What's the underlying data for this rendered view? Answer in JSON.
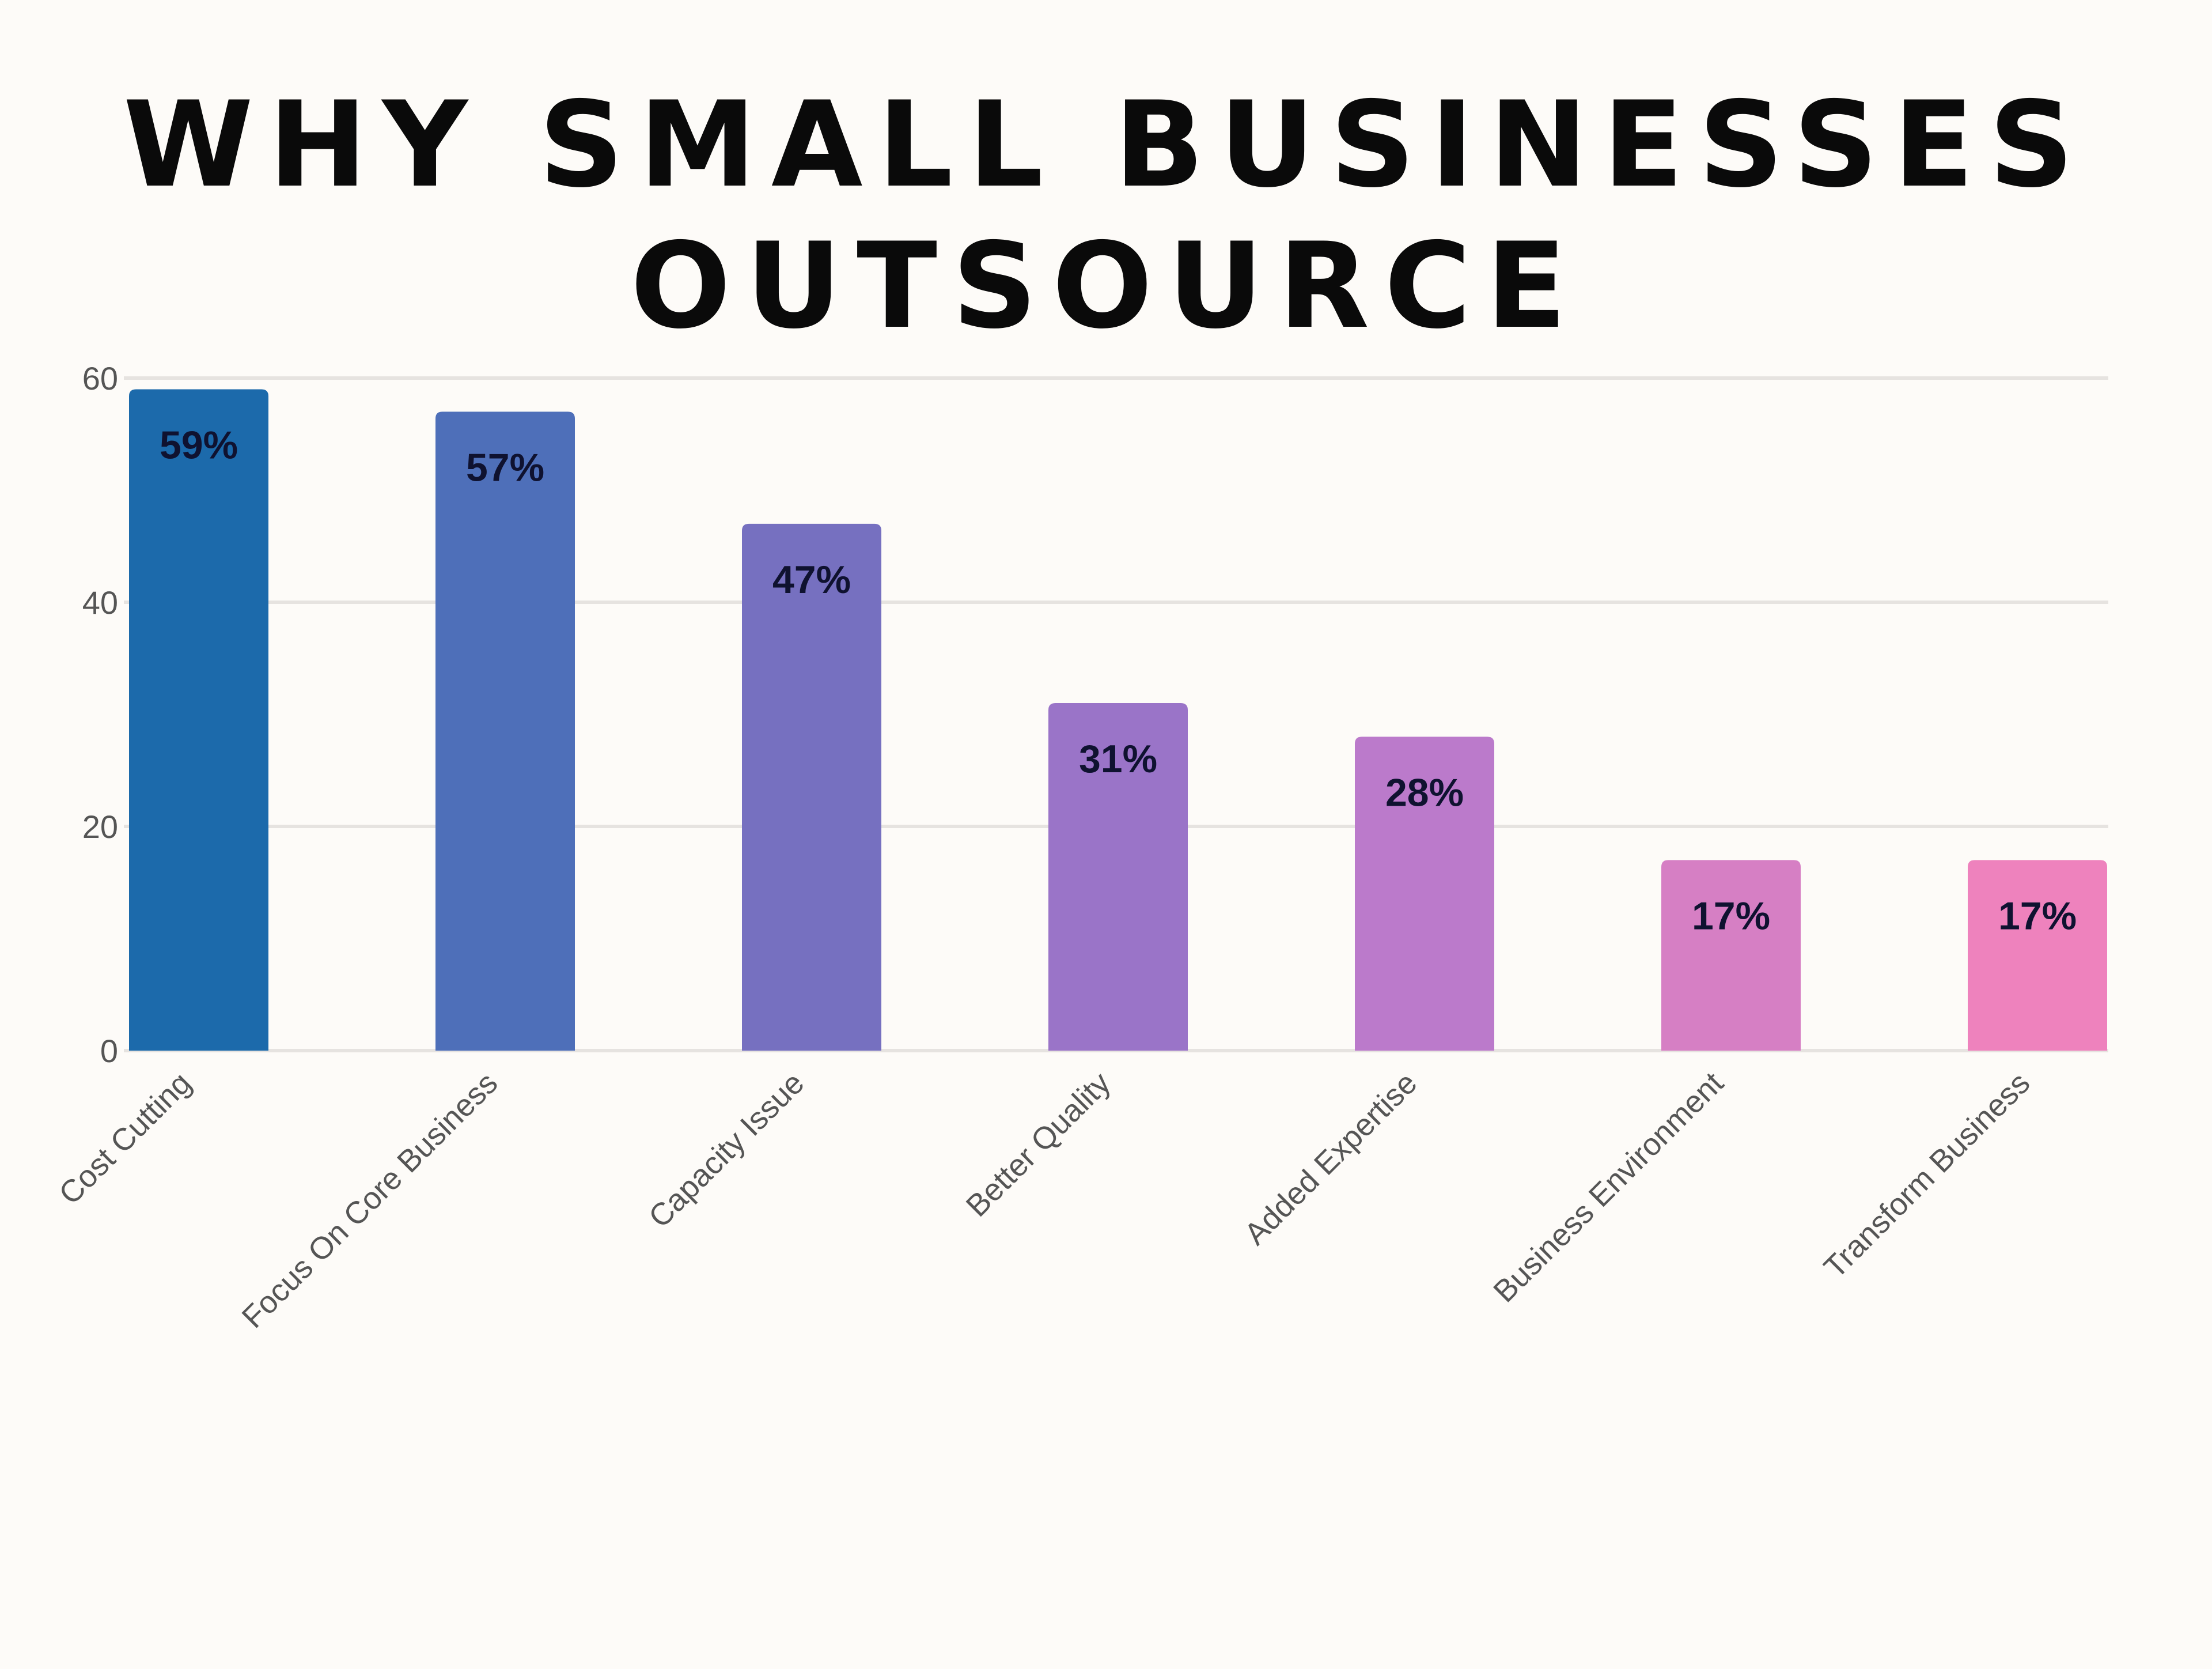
{
  "chart_data": {
    "type": "bar",
    "title": [
      "WHY SMALL BUSINESSES",
      "OUTSOURCE"
    ],
    "xlabel": "",
    "ylabel": "",
    "categories": [
      "Cost Cutting",
      "Focus On Core Business",
      "Capacity Issue",
      "Better Quality",
      "Added Expertise",
      "Business Environment",
      "Transform Business"
    ],
    "values": [
      59,
      57,
      47,
      31,
      28,
      17,
      17
    ],
    "data_labels": [
      "59%",
      "57%",
      "47%",
      "31%",
      "28%",
      "17%",
      "17%"
    ],
    "colors": [
      "#1c6aab",
      "#4e6fb9",
      "#7670c0",
      "#9a74c8",
      "#bb7acb",
      "#d67fc4",
      "#ee82bd"
    ],
    "ylim": [
      0,
      60
    ],
    "yticks": [
      0,
      20,
      40,
      60
    ],
    "grid": true,
    "legend": "none",
    "background": "#fdfbf8"
  }
}
